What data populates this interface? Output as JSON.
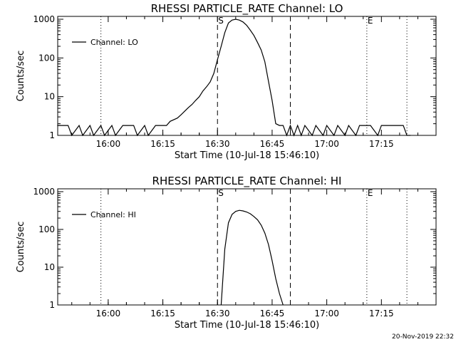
{
  "timestamp": "20-Nov-2019 22:32",
  "chart_data": [
    {
      "type": "line",
      "title": "RHESSI PARTICLE_RATE Channel: LO",
      "xlabel": "Start Time (10-Jul-18 15:46:10)",
      "ylabel": "Counts/sec",
      "y_scale": "log",
      "ylim": [
        1,
        1000
      ],
      "xlim": [
        15.769,
        17.5
      ],
      "x_ticks": [
        "16:00",
        "16:15",
        "16:30",
        "16:45",
        "17:00",
        "17:15"
      ],
      "y_ticks": [
        "1",
        "10",
        "100",
        "1000"
      ],
      "legend": {
        "label": "Channel: LO",
        "position": "top-left"
      },
      "markers": [
        {
          "label": "S",
          "time": "16:30",
          "style": "dashed"
        },
        {
          "label": "",
          "time": "16:50",
          "style": "dashed"
        },
        {
          "label": "",
          "time": "15:58",
          "style": "dotted"
        },
        {
          "label": "E",
          "time": "17:11",
          "style": "dotted"
        },
        {
          "label": "",
          "time": "17:22",
          "style": "dotted"
        }
      ],
      "series": [
        {
          "name": "Channel: LO",
          "x": [
            "15:46",
            "15:49",
            "15:50",
            "15:52",
            "15:53",
            "15:55",
            "15:56",
            "15:58",
            "15:59",
            "16:01",
            "16:02",
            "16:04",
            "16:05",
            "16:07",
            "16:08",
            "16:10",
            "16:11",
            "16:13",
            "16:14",
            "16:16",
            "16:17",
            "16:19",
            "16:20",
            "16:21",
            "16:22",
            "16:23",
            "16:24",
            "16:25",
            "16:26",
            "16:27",
            "16:28",
            "16:29",
            "16:30",
            "16:31",
            "16:32",
            "16:33",
            "16:34",
            "16:35",
            "16:36",
            "16:37",
            "16:38",
            "16:39",
            "16:40",
            "16:41",
            "16:42",
            "16:43",
            "16:44",
            "16:45",
            "16:46",
            "16:47",
            "16:48",
            "16:49",
            "16:50",
            "16:51",
            "16:52",
            "16:53",
            "16:54",
            "16:56",
            "16:57",
            "16:59",
            "17:00",
            "17:02",
            "17:03",
            "17:05",
            "17:06",
            "17:08",
            "17:09",
            "17:11",
            "17:12",
            "17:14",
            "17:15",
            "17:17",
            "17:18",
            "17:20",
            "17:21",
            "17:22",
            "17:23"
          ],
          "values": [
            1.8,
            1.8,
            1,
            1.8,
            1,
            1.8,
            1,
            1.8,
            1,
            1.8,
            1,
            1.8,
            1.8,
            1.8,
            1,
            1.8,
            1,
            1.8,
            1.8,
            1.8,
            2.3,
            2.8,
            3.4,
            4.2,
            5.2,
            6.3,
            8,
            10,
            14,
            18,
            24,
            40,
            90,
            200,
            450,
            800,
            950,
            1000,
            950,
            850,
            700,
            520,
            380,
            250,
            160,
            80,
            25,
            8,
            2,
            1.8,
            1.8,
            1,
            1.8,
            1,
            1.8,
            1,
            1.8,
            1,
            1.8,
            1,
            1.8,
            1,
            1.8,
            1,
            1.8,
            1,
            1.8,
            1.8,
            1.8,
            1,
            1.8,
            1.8,
            1.8,
            1.8,
            1.8,
            1,
            1
          ]
        }
      ]
    },
    {
      "type": "line",
      "title": "RHESSI PARTICLE_RATE Channel: HI",
      "xlabel": "Start Time (10-Jul-18 15:46:10)",
      "ylabel": "Counts/sec",
      "y_scale": "log",
      "ylim": [
        1,
        1000
      ],
      "xlim": [
        15.769,
        17.5
      ],
      "x_ticks": [
        "16:00",
        "16:15",
        "16:30",
        "16:45",
        "17:00",
        "17:15"
      ],
      "y_ticks": [
        "1",
        "10",
        "100",
        "1000"
      ],
      "legend": {
        "label": "Channel: HI",
        "position": "top-left"
      },
      "markers": [
        {
          "label": "S",
          "time": "16:30",
          "style": "dashed"
        },
        {
          "label": "",
          "time": "16:50",
          "style": "dashed"
        },
        {
          "label": "",
          "time": "15:58",
          "style": "dotted"
        },
        {
          "label": "E",
          "time": "17:11",
          "style": "dotted"
        },
        {
          "label": "",
          "time": "17:22",
          "style": "dotted"
        }
      ],
      "series": [
        {
          "name": "Channel: HI",
          "x": [
            "16:31",
            "16:32",
            "16:33",
            "16:34",
            "16:35",
            "16:36",
            "16:37",
            "16:38",
            "16:39",
            "16:40",
            "16:41",
            "16:42",
            "16:43",
            "16:44",
            "16:45",
            "16:46",
            "16:47",
            "16:48"
          ],
          "values": [
            1,
            30,
            150,
            250,
            300,
            320,
            310,
            290,
            260,
            220,
            180,
            130,
            80,
            40,
            15,
            5,
            2,
            1
          ]
        }
      ]
    }
  ]
}
